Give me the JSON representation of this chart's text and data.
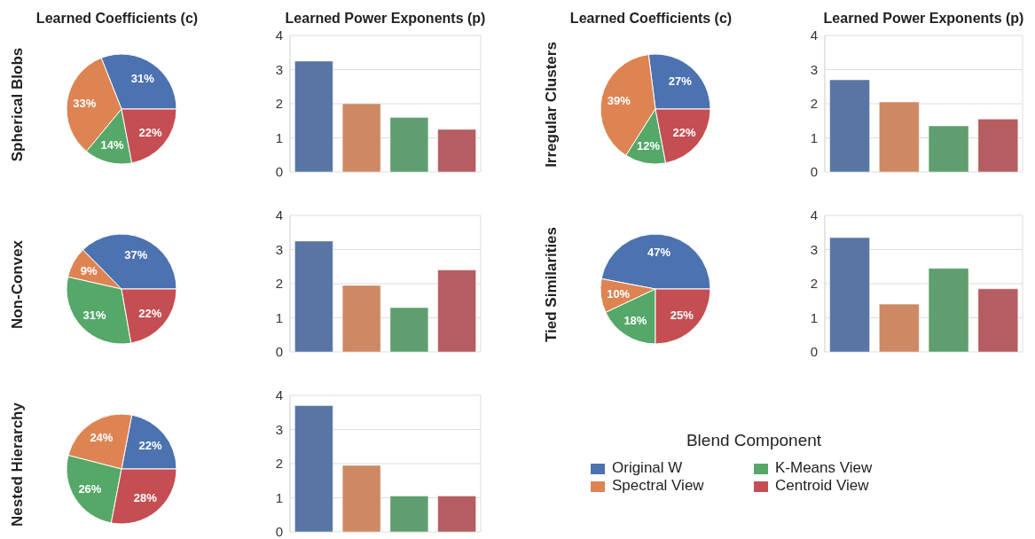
{
  "chart_data": [
    {
      "type": "pie",
      "title": "Learned Coefficients (c)",
      "ylabel": "Spherical Blobs",
      "categories": [
        null,
        null,
        null,
        null
      ],
      "values": [
        31,
        33,
        14,
        22
      ],
      "value_labels": [
        "31%",
        "33%",
        "14%",
        "22%"
      ],
      "colors": [
        "#4c72b0",
        "#dd8452",
        "#55a868",
        "#c44e52"
      ]
    },
    {
      "type": "bar",
      "title": "Learned Power Exponents (p)",
      "categories": [
        null,
        null,
        null,
        null
      ],
      "values": [
        3.25,
        2.0,
        1.6,
        1.25
      ],
      "colors": [
        "#5875a4",
        "#cc8963",
        "#5f9e6e",
        "#b55d60"
      ],
      "ylim": [
        0,
        4
      ],
      "yticks": [
        0,
        1,
        2,
        3,
        4
      ],
      "grid": true,
      "tick_labels": "y"
    },
    {
      "type": "pie",
      "title": "Learned Coefficients (c)",
      "ylabel": "Irregular Clusters",
      "categories": [
        null,
        null,
        null,
        null
      ],
      "values": [
        27,
        39,
        12,
        22
      ],
      "value_labels": [
        "27%",
        "39%",
        "12%",
        "22%"
      ],
      "colors": [
        "#4c72b0",
        "#dd8452",
        "#55a868",
        "#c44e52"
      ]
    },
    {
      "type": "bar",
      "title": "Learned Power Exponents (p)",
      "categories": [
        null,
        null,
        null,
        null
      ],
      "values": [
        2.7,
        2.05,
        1.35,
        1.55
      ],
      "colors": [
        "#5875a4",
        "#cc8963",
        "#5f9e6e",
        "#b55d60"
      ],
      "ylim": [
        0,
        4
      ],
      "yticks": [
        0,
        1,
        2,
        3,
        4
      ],
      "grid": true,
      "tick_labels": "y"
    },
    {
      "type": "pie",
      "ylabel": "Non-Convex",
      "categories": [
        null,
        null,
        null,
        null
      ],
      "values": [
        37,
        9,
        31,
        22
      ],
      "value_labels": [
        "37%",
        "9%",
        "31%",
        "22%"
      ],
      "colors": [
        "#4c72b0",
        "#dd8452",
        "#55a868",
        "#c44e52"
      ]
    },
    {
      "type": "bar",
      "categories": [
        null,
        null,
        null,
        null
      ],
      "values": [
        3.25,
        1.95,
        1.3,
        2.4
      ],
      "colors": [
        "#5875a4",
        "#cc8963",
        "#5f9e6e",
        "#b55d60"
      ],
      "ylim": [
        0,
        4
      ],
      "yticks": [
        0,
        1,
        2,
        3,
        4
      ],
      "grid": true,
      "tick_labels": "y"
    },
    {
      "type": "pie",
      "ylabel": "Tied Similarities",
      "categories": [
        null,
        null,
        null,
        null
      ],
      "values": [
        47,
        10,
        18,
        25
      ],
      "value_labels": [
        "47%",
        "10%",
        "18%",
        "25%"
      ],
      "colors": [
        "#4c72b0",
        "#dd8452",
        "#55a868",
        "#c44e52"
      ]
    },
    {
      "type": "bar",
      "categories": [
        null,
        null,
        null,
        null
      ],
      "values": [
        3.35,
        1.4,
        2.45,
        1.85
      ],
      "colors": [
        "#5875a4",
        "#cc8963",
        "#5f9e6e",
        "#b55d60"
      ],
      "ylim": [
        0,
        4
      ],
      "yticks": [
        0,
        1,
        2,
        3,
        4
      ],
      "grid": true,
      "tick_labels": "y"
    },
    {
      "type": "pie",
      "ylabel": "Nested Hierarchy",
      "categories": [
        "Original W",
        "Spectral View",
        "K-Means View",
        "Centroid View"
      ],
      "values": [
        22,
        24,
        26,
        28
      ],
      "value_labels": [
        "22%",
        "24%",
        "26%",
        "28%"
      ],
      "colors": [
        "#4c72b0",
        "#dd8452",
        "#55a868",
        "#c44e52"
      ],
      "legend": "right",
      "legend_title": "Blend Component"
    },
    {
      "type": "bar",
      "categories": [
        null,
        null,
        null,
        null
      ],
      "values": [
        3.7,
        1.95,
        1.05,
        1.05
      ],
      "colors": [
        "#5875a4",
        "#cc8963",
        "#5f9e6e",
        "#b55d60"
      ],
      "ylim": [
        0,
        4
      ],
      "yticks": [
        0,
        1,
        2,
        3,
        4
      ],
      "grid": true,
      "tick_labels": "y"
    }
  ]
}
